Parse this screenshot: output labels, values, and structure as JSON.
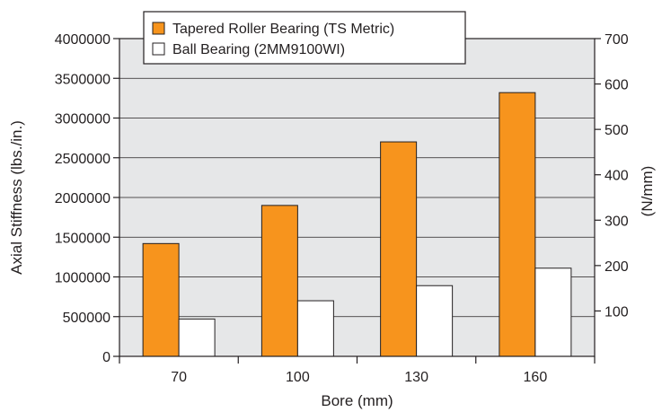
{
  "chart_data": {
    "type": "bar",
    "categories": [
      "70",
      "100",
      "130",
      "160"
    ],
    "series": [
      {
        "name": "Tapered Roller Bearing (TS Metric)",
        "values": [
          1420000,
          1900000,
          2700000,
          3320000
        ],
        "color": "#f7941d"
      },
      {
        "name": "Ball Bearing (2MM9100WI)",
        "values": [
          470000,
          700000,
          890000,
          1110000
        ],
        "color": "#ffffff"
      }
    ],
    "xlabel": "Bore (mm)",
    "ylabel": "Axial Stiffness (lbs./in.)",
    "y2label": "(N/mm)",
    "ylim": [
      0,
      4000000
    ],
    "yticks": [
      "0",
      "500000",
      "1000000",
      "1500000",
      "2000000",
      "2500000",
      "3000000",
      "3500000",
      "4000000"
    ],
    "y2lim": [
      0,
      700
    ],
    "y2ticks": [
      "100",
      "200",
      "300",
      "400",
      "500",
      "600",
      "700"
    ],
    "grid": true,
    "legend_position": "top-center",
    "plot_background": "#e6e7e8",
    "border_color": "#231f20"
  }
}
